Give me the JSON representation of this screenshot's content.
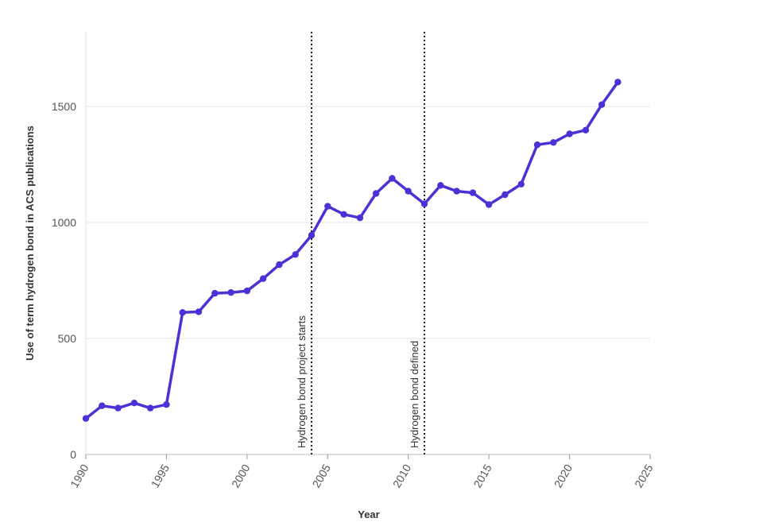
{
  "chart_data": {
    "type": "line",
    "xlabel": "Year",
    "ylabel": "Use of term hydrogen bond in ACS publications",
    "xlim": [
      1990,
      2025
    ],
    "ylim": [
      0,
      1800
    ],
    "x_ticks": [
      1990,
      1995,
      2000,
      2005,
      2010,
      2015,
      2020,
      2025
    ],
    "y_ticks": [
      0,
      500,
      1000,
      1500
    ],
    "grid": "horizontal",
    "series": [
      {
        "color": "#4a33d6",
        "x": [
          1990,
          1991,
          1992,
          1993,
          1994,
          1995,
          1996,
          1997,
          1998,
          1999,
          2000,
          2001,
          2002,
          2003,
          2004,
          2005,
          2006,
          2007,
          2008,
          2009,
          2010,
          2011,
          2012,
          2013,
          2014,
          2015,
          2016,
          2017,
          2018,
          2019,
          2020,
          2021,
          2022,
          2023
        ],
        "y": [
          155,
          210,
          200,
          222,
          200,
          215,
          612,
          615,
          695,
          698,
          705,
          758,
          818,
          862,
          945,
          1070,
          1035,
          1020,
          1125,
          1190,
          1135,
          1080,
          1160,
          1135,
          1128,
          1077,
          1120,
          1165,
          1335,
          1345,
          1382,
          1398,
          1508,
          1605
        ]
      }
    ],
    "annotations": [
      {
        "x": 2004,
        "text": "Hydrogen bond project starts",
        "line_style": "dotted"
      },
      {
        "x": 2011,
        "text": "Hydrogen bond defined",
        "line_style": "dotted"
      }
    ]
  }
}
